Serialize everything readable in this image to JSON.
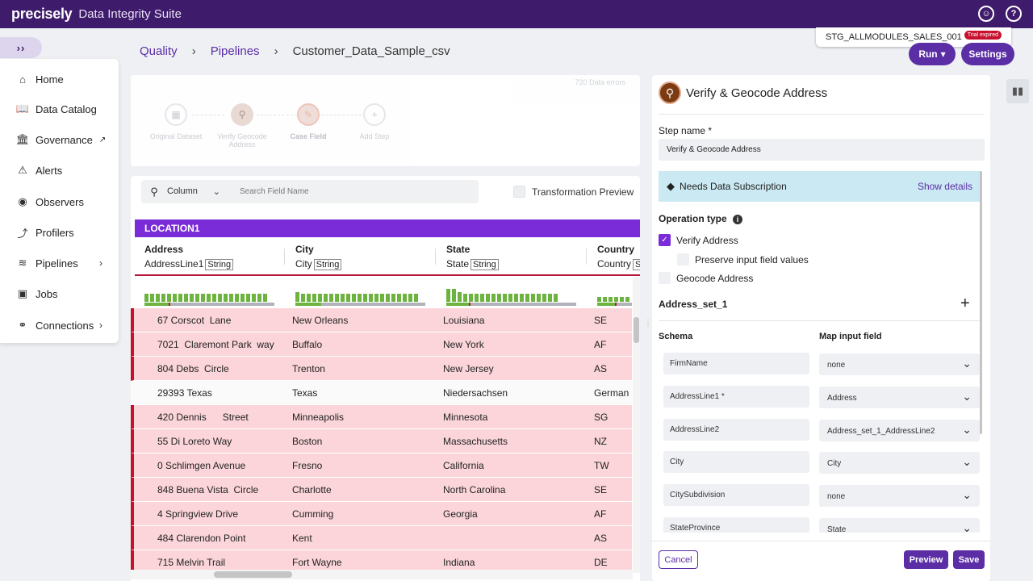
{
  "app": {
    "logo": "precisely",
    "suite": "Data Integrity Suite"
  },
  "workspace": {
    "name": "STG_ALLMODULES_SALES_001",
    "badge": "Trial expired"
  },
  "topbar_icons": [
    "user-circle-icon",
    "help-icon"
  ],
  "expand_label": "››",
  "breadcrumb": {
    "quality": "Quality",
    "pipelines": "Pipelines",
    "current": "Customer_Data_Sample_csv",
    "sep": "›"
  },
  "actions": {
    "run": "Run",
    "settings": "Settings"
  },
  "nav": [
    {
      "label": "Home",
      "icon": "home-icon"
    },
    {
      "label": "Data Catalog",
      "icon": "book-icon"
    },
    {
      "label": "Governance",
      "icon": "bank-icon"
    },
    {
      "label": "Alerts",
      "icon": "alert-icon"
    },
    {
      "label": "Observers",
      "icon": "eye-icon"
    },
    {
      "label": "Profilers",
      "icon": "chart-line-icon"
    },
    {
      "label": "Pipelines",
      "icon": "waves-icon"
    },
    {
      "label": "Jobs",
      "icon": "play-icon"
    },
    {
      "label": "Connections",
      "icon": "connections-icon"
    }
  ],
  "steps": {
    "errors": "720 Data errors",
    "items": [
      {
        "label": "Original Dataset"
      },
      {
        "label": "Verify Geocode Address"
      },
      {
        "label": "Case Field"
      },
      {
        "label": "Add Step"
      }
    ]
  },
  "search": {
    "column": "Column",
    "placeholder": "Search Field Name",
    "transform_preview": "Transformation Preview"
  },
  "grid": {
    "group": "LOCATION1",
    "columns": [
      {
        "name": "Address",
        "field": "AddressLine1",
        "type": "String"
      },
      {
        "name": "City",
        "field": "City",
        "type": "String"
      },
      {
        "name": "State",
        "field": "State",
        "type": "String"
      },
      {
        "name": "Country",
        "field": "Country",
        "type": "S"
      }
    ],
    "rows": [
      {
        "address": "67 Corscot  Lane",
        "city": "New Orleans",
        "state": "Louisiana",
        "country": "SE",
        "error": true
      },
      {
        "address": "7021  Claremont Park  way",
        "city": "Buffalo",
        "state": "New York",
        "country": "AF",
        "error": true
      },
      {
        "address": "804 Debs  Circle",
        "city": "Trenton",
        "state": "New Jersey",
        "country": "AS",
        "error": true
      },
      {
        "address": "29393 Texas",
        "city": "Texas",
        "state": "Niedersachsen",
        "country": "German",
        "error": false
      },
      {
        "address": "420 Dennis      Street",
        "city": "Minneapolis",
        "state": "Minnesota",
        "country": "SG",
        "error": true
      },
      {
        "address": "55 Di Loreto Way",
        "city": "Boston",
        "state": "Massachusetts",
        "country": "NZ",
        "error": true
      },
      {
        "address": "0 Schlimgen Avenue",
        "city": "Fresno",
        "state": "California",
        "country": "TW",
        "error": true
      },
      {
        "address": "848 Buena Vista  Circle",
        "city": "Charlotte",
        "state": "North Carolina",
        "country": "SE",
        "error": true
      },
      {
        "address": "4 Springview Drive",
        "city": "Cumming",
        "state": "Georgia",
        "country": "AF",
        "error": true
      },
      {
        "address": "484 Clarendon Point",
        "city": "Kent",
        "state": "",
        "country": "AS",
        "error": true
      },
      {
        "address": "715 Melvin Trail",
        "city": "Fort Wayne",
        "state": "Indiana",
        "country": "DE",
        "error": true
      }
    ]
  },
  "panel": {
    "title": "Verify & Geocode Address",
    "step_name_label": "Step name *",
    "step_name_value": "Verify & Geocode Address",
    "subscription": "Needs Data Subscription",
    "show_details": "Show details",
    "operation_type": "Operation type",
    "verify_address": "Verify Address",
    "preserve": "Preserve input field values",
    "geocode": "Geocode Address",
    "address_set": "Address_set_1",
    "schema_label": "Schema",
    "map_label": "Map input field",
    "mappings": [
      {
        "schema": "FirmName",
        "map": "none"
      },
      {
        "schema": "AddressLine1 *",
        "map": "Address"
      },
      {
        "schema": "AddressLine2",
        "map": "Address_set_1_AddressLine2"
      },
      {
        "schema": "City",
        "map": "City"
      },
      {
        "schema": "CitySubdivision",
        "map": "none"
      },
      {
        "schema": "StateProvince",
        "map": "State"
      }
    ],
    "cancel": "Cancel",
    "preview": "Preview",
    "save": "Save"
  },
  "colors": {
    "brand": "#3f1b6b",
    "accent": "#5b2ea6",
    "error_row": "#fbd5d9",
    "error_mark": "#c8102e",
    "group_header": "#7b2cd9"
  }
}
